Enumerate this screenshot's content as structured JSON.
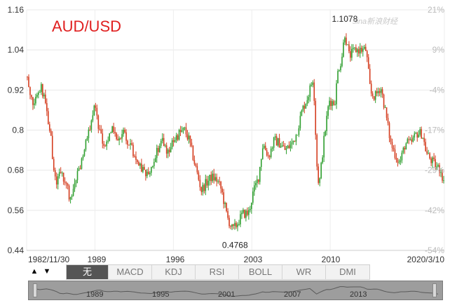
{
  "chart_data": {
    "type": "candlestick",
    "title": "AUD/USD",
    "watermark": "sina新浪财经",
    "y_left_ticks": [
      "1.16",
      "1.04",
      "0.92",
      "0.8",
      "0.68",
      "0.56",
      "0.44"
    ],
    "y_left_range": [
      0.44,
      1.16
    ],
    "y_right_ticks": [
      "21%",
      "9%",
      "-4%",
      "-17%",
      "-29%",
      "-42%",
      "-54%"
    ],
    "x_ticks": [
      "1982/11/30",
      "1989",
      "1996",
      "2003",
      "2010",
      "2020/3/10"
    ],
    "annotations": [
      {
        "label": "1.1078",
        "year": 2011.3,
        "value": 1.1078
      },
      {
        "label": "0.4768",
        "year": 2001.5,
        "value": 0.4768
      }
    ],
    "up_color": "#2e9e2e",
    "down_color": "#d43c1e",
    "grid": true,
    "series": [
      {
        "points": [
          [
            1982.9,
            0.96
          ],
          [
            1983.5,
            0.88
          ],
          [
            1984.2,
            0.93
          ],
          [
            1984.6,
            0.87
          ],
          [
            1985.0,
            0.8
          ],
          [
            1985.3,
            0.68
          ],
          [
            1985.6,
            0.64
          ],
          [
            1986.0,
            0.68
          ],
          [
            1986.5,
            0.63
          ],
          [
            1986.8,
            0.59
          ],
          [
            1987.3,
            0.66
          ],
          [
            1987.8,
            0.71
          ],
          [
            1988.3,
            0.77
          ],
          [
            1988.7,
            0.83
          ],
          [
            1989.0,
            0.88
          ],
          [
            1989.4,
            0.79
          ],
          [
            1989.9,
            0.76
          ],
          [
            1990.5,
            0.8
          ],
          [
            1991.0,
            0.76
          ],
          [
            1991.5,
            0.79
          ],
          [
            1992.2,
            0.75
          ],
          [
            1992.8,
            0.69
          ],
          [
            1993.3,
            0.68
          ],
          [
            1993.8,
            0.66
          ],
          [
            1994.4,
            0.73
          ],
          [
            1995.0,
            0.77
          ],
          [
            1995.5,
            0.73
          ],
          [
            1996.0,
            0.77
          ],
          [
            1996.5,
            0.79
          ],
          [
            1997.0,
            0.8
          ],
          [
            1997.4,
            0.77
          ],
          [
            1997.9,
            0.7
          ],
          [
            1998.5,
            0.62
          ],
          [
            1998.9,
            0.64
          ],
          [
            1999.4,
            0.66
          ],
          [
            1999.9,
            0.65
          ],
          [
            2000.3,
            0.62
          ],
          [
            2000.8,
            0.54
          ],
          [
            2001.3,
            0.5
          ],
          [
            2001.7,
            0.52
          ],
          [
            2002.2,
            0.55
          ],
          [
            2002.7,
            0.55
          ],
          [
            2003.1,
            0.61
          ],
          [
            2003.6,
            0.66
          ],
          [
            2004.0,
            0.76
          ],
          [
            2004.5,
            0.72
          ],
          [
            2005.0,
            0.77
          ],
          [
            2005.5,
            0.76
          ],
          [
            2006.0,
            0.74
          ],
          [
            2006.6,
            0.76
          ],
          [
            2007.0,
            0.79
          ],
          [
            2007.5,
            0.86
          ],
          [
            2008.0,
            0.9
          ],
          [
            2008.5,
            0.96
          ],
          [
            2008.8,
            0.7
          ],
          [
            2009.0,
            0.63
          ],
          [
            2009.4,
            0.76
          ],
          [
            2009.9,
            0.89
          ],
          [
            2010.4,
            0.88
          ],
          [
            2010.7,
            0.98
          ],
          [
            2011.0,
            1.01
          ],
          [
            2011.3,
            1.09
          ],
          [
            2011.7,
            1.02
          ],
          [
            2012.2,
            1.04
          ],
          [
            2012.8,
            1.04
          ],
          [
            2013.2,
            1.04
          ],
          [
            2013.6,
            0.91
          ],
          [
            2014.0,
            0.9
          ],
          [
            2014.5,
            0.93
          ],
          [
            2014.9,
            0.86
          ],
          [
            2015.4,
            0.76
          ],
          [
            2015.9,
            0.72
          ],
          [
            2016.2,
            0.7
          ],
          [
            2016.7,
            0.76
          ],
          [
            2017.2,
            0.76
          ],
          [
            2017.7,
            0.79
          ],
          [
            2018.2,
            0.79
          ],
          [
            2018.6,
            0.73
          ],
          [
            2019.0,
            0.71
          ],
          [
            2019.5,
            0.69
          ],
          [
            2019.9,
            0.68
          ],
          [
            2020.19,
            0.63
          ]
        ]
      }
    ]
  },
  "tabs": [
    "▲",
    "▼",
    "无",
    "MACD",
    "KDJ",
    "RSI",
    "BOLL",
    "WR",
    "DMI"
  ],
  "navigator": {
    "labels": [
      "1989",
      "1995",
      "2001",
      "2007",
      "2013"
    ]
  }
}
